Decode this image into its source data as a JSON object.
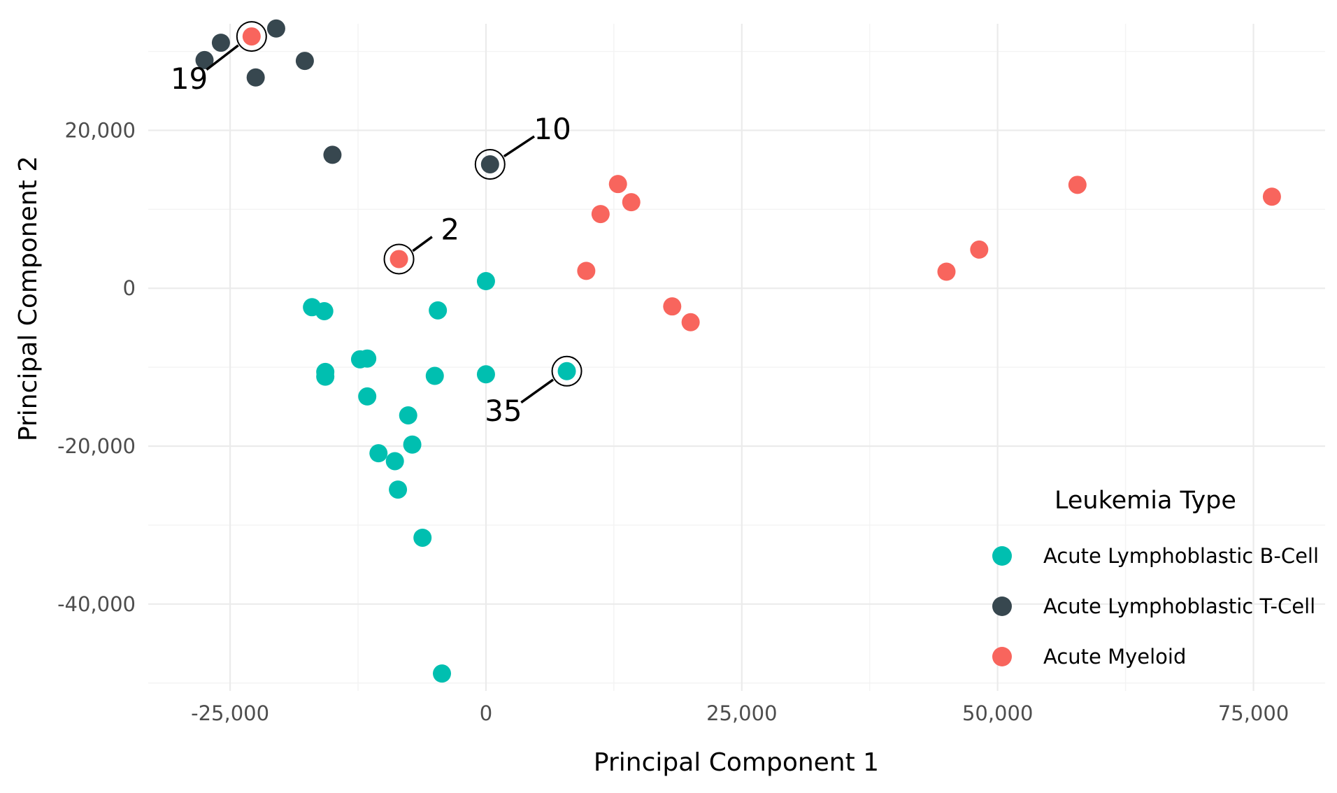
{
  "chart_data": {
    "type": "scatter",
    "title": "",
    "xlabel": "Principal Component 1",
    "ylabel": "Principal Component 2",
    "xlim": [
      -33000,
      82000
    ],
    "ylim": [
      -51000,
      33500
    ],
    "x_ticks": [
      -25000,
      0,
      25000,
      50000,
      75000
    ],
    "x_tick_labels": [
      "-25,000",
      "0",
      "25,000",
      "50,000",
      "75,000"
    ],
    "y_ticks": [
      -40000,
      -20000,
      0,
      20000
    ],
    "y_tick_labels": [
      "-40,000",
      "-20,000",
      "0",
      "20,000"
    ],
    "grid": true,
    "legend": {
      "title": "Leukemia Type",
      "position": "right-bottom"
    },
    "series": [
      {
        "name": "Acute Lymphoblastic B-Cell",
        "color": "#00BFB0",
        "points": [
          {
            "x": 0,
            "y": 900
          },
          {
            "x": -4700,
            "y": -2800
          },
          {
            "x": -17000,
            "y": -2400
          },
          {
            "x": -15800,
            "y": -2900
          },
          {
            "x": -15700,
            "y": -10600
          },
          {
            "x": -15700,
            "y": -11200
          },
          {
            "x": -12300,
            "y": -9000
          },
          {
            "x": -11600,
            "y": -8900
          },
          {
            "x": -11600,
            "y": -13700
          },
          {
            "x": -5000,
            "y": -11100
          },
          {
            "x": 0,
            "y": -10900
          },
          {
            "x": 7900,
            "y": -10500,
            "label": "35"
          },
          {
            "x": -7600,
            "y": -16100
          },
          {
            "x": -7200,
            "y": -19800
          },
          {
            "x": -10500,
            "y": -20900
          },
          {
            "x": -8900,
            "y": -21900
          },
          {
            "x": -8600,
            "y": -25500
          },
          {
            "x": -6200,
            "y": -31600
          },
          {
            "x": -4300,
            "y": -48800
          }
        ]
      },
      {
        "name": "Acute Lymphoblastic T-Cell",
        "color": "#37474F",
        "points": [
          {
            "x": -27500,
            "y": 28900
          },
          {
            "x": -25900,
            "y": 31100
          },
          {
            "x": -20500,
            "y": 32900
          },
          {
            "x": -22500,
            "y": 26700
          },
          {
            "x": -17700,
            "y": 28800
          },
          {
            "x": -15000,
            "y": 16900
          },
          {
            "x": 400,
            "y": 15700,
            "label": "10"
          }
        ]
      },
      {
        "name": "Acute Myeloid",
        "color": "#F8655D",
        "points": [
          {
            "x": -22900,
            "y": 31900,
            "label": "19"
          },
          {
            "x": -8500,
            "y": 3700,
            "label": "2"
          },
          {
            "x": 12900,
            "y": 13200
          },
          {
            "x": 11200,
            "y": 9400
          },
          {
            "x": 14200,
            "y": 10900
          },
          {
            "x": 9800,
            "y": 2200
          },
          {
            "x": 18200,
            "y": -2300
          },
          {
            "x": 20000,
            "y": -4300
          },
          {
            "x": 45000,
            "y": 2100
          },
          {
            "x": 48200,
            "y": 4900
          },
          {
            "x": 57800,
            "y": 13100
          },
          {
            "x": 76800,
            "y": 11600
          }
        ]
      }
    ],
    "annotations": [
      {
        "text": "19",
        "x": -22900,
        "y": 31900,
        "label_x": -29000,
        "label_y": 26600
      },
      {
        "text": "10",
        "x": 400,
        "y": 15700,
        "label_x": 6500,
        "label_y": 20200
      },
      {
        "text": "2",
        "x": -8500,
        "y": 3700,
        "label_x": -3500,
        "label_y": 7500
      },
      {
        "text": "35",
        "x": 7900,
        "y": -10500,
        "label_x": 1700,
        "label_y": -15500
      }
    ]
  }
}
